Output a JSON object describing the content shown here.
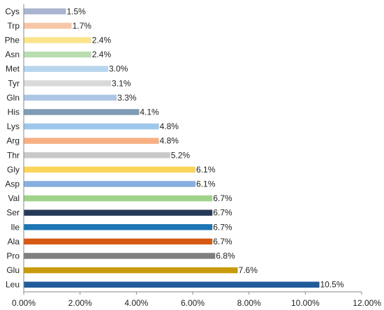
{
  "chart_data": {
    "type": "bar",
    "orientation": "horizontal",
    "categories": [
      "Cys",
      "Trp",
      "Phe",
      "Asn",
      "Met",
      "Tyr",
      "Gln",
      "His",
      "Lys",
      "Arg",
      "Thr",
      "Gly",
      "Asp",
      "Val",
      "Ser",
      "Ile",
      "Ala",
      "Pro",
      "Glu",
      "Leu"
    ],
    "values": [
      1.5,
      1.7,
      2.4,
      2.4,
      3.0,
      3.1,
      3.3,
      4.1,
      4.8,
      4.8,
      5.2,
      6.1,
      6.1,
      6.7,
      6.7,
      6.7,
      6.7,
      6.8,
      7.6,
      10.5
    ],
    "value_labels": [
      "1.5%",
      "1.7%",
      "2.4%",
      "2.4%",
      "3.0%",
      "3.1%",
      "3.3%",
      "4.1%",
      "4.8%",
      "4.8%",
      "5.2%",
      "6.1%",
      "6.1%",
      "6.7%",
      "6.7%",
      "6.7%",
      "6.7%",
      "6.8%",
      "7.6%",
      "10.5%"
    ],
    "colors": [
      "#a9b4d0",
      "#f6c6a6",
      "#fbe38a",
      "#b9ddb1",
      "#b7d6ee",
      "#d9d9d9",
      "#aec6e6",
      "#7f9bb6",
      "#9ec7ec",
      "#f8b083",
      "#c9c9c9",
      "#fdd45a",
      "#86aee0",
      "#9fd38a",
      "#263957",
      "#1b76b3",
      "#d55a12",
      "#7f7f7f",
      "#c99a0b",
      "#1f5a99"
    ],
    "x_ticks": [
      0,
      2,
      4,
      6,
      8,
      10,
      12
    ],
    "x_tick_labels": [
      "0.00%",
      "2.00%",
      "4.00%",
      "6.00%",
      "8.00%",
      "10.00%",
      "12.00%"
    ],
    "xlim": [
      0,
      12
    ],
    "title": "",
    "xlabel": "",
    "ylabel": "",
    "grid": false,
    "legend": "none"
  }
}
